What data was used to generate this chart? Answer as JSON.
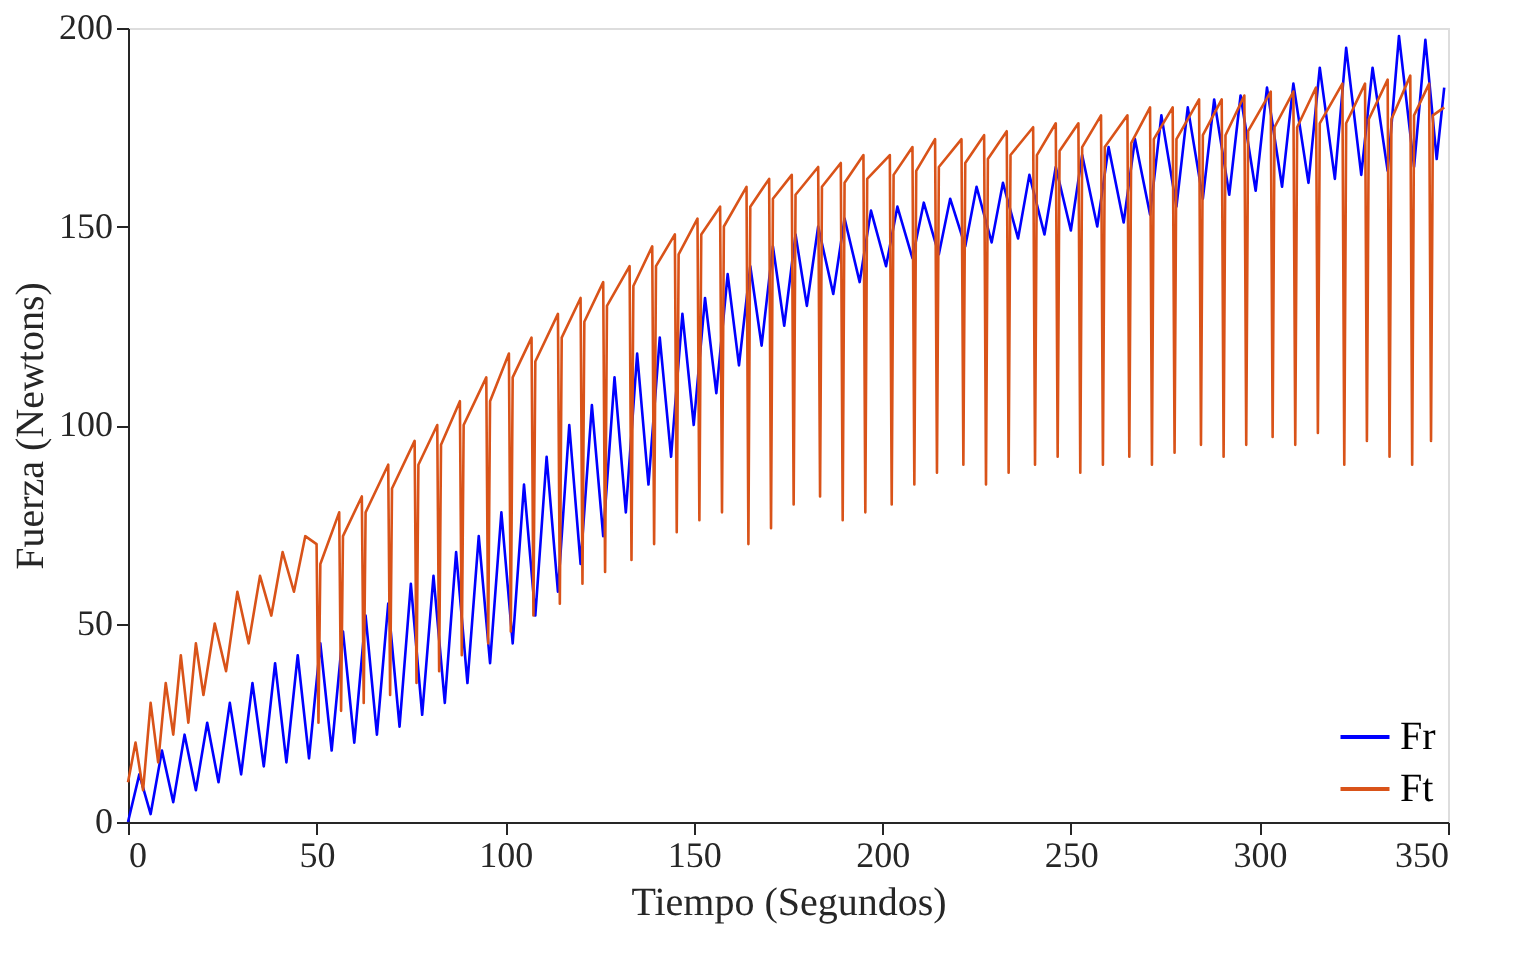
{
  "chart_data": {
    "type": "line",
    "xlabel": "Tiempo (Segundos)",
    "ylabel": "Fuerza (Newtons)",
    "xlim": [
      0,
      350
    ],
    "xticks": [
      0,
      50,
      100,
      150,
      200,
      250,
      300,
      350
    ],
    "ylim": [
      0,
      200
    ],
    "yticks": [
      0,
      50,
      100,
      150,
      200
    ],
    "grid": false,
    "legend": "bottom right",
    "marker": "none",
    "line_style": "solid",
    "series": [
      {
        "name": "Fr",
        "color": "#0000ff",
        "x": [
          0,
          3,
          6,
          9,
          12,
          15,
          18,
          21,
          24,
          27,
          30,
          33,
          36,
          39,
          42,
          45,
          48,
          51,
          54,
          57,
          60,
          63,
          66,
          69,
          72,
          75,
          78,
          81,
          84,
          87,
          90,
          93,
          96,
          99,
          102,
          105,
          108,
          111,
          114,
          117,
          120,
          123,
          126,
          129,
          132,
          135,
          138,
          141,
          144,
          147,
          150,
          153,
          156,
          159,
          162,
          165,
          168,
          171,
          174,
          177,
          180,
          183,
          187,
          190,
          194,
          197,
          201,
          204,
          208,
          211,
          215,
          218,
          222,
          225,
          229,
          232,
          236,
          239,
          243,
          246,
          250,
          253,
          257,
          260,
          264,
          267,
          271,
          274,
          278,
          281,
          285,
          288,
          292,
          295,
          299,
          302,
          306,
          309,
          313,
          316,
          320,
          323,
          327,
          330,
          334,
          337,
          341,
          344,
          347,
          349
        ],
        "values": [
          0,
          12,
          2,
          18,
          5,
          22,
          8,
          25,
          10,
          30,
          12,
          35,
          14,
          40,
          15,
          42,
          16,
          45,
          18,
          48,
          20,
          52,
          22,
          55,
          24,
          60,
          27,
          62,
          30,
          68,
          35,
          72,
          40,
          78,
          45,
          85,
          52,
          92,
          58,
          100,
          65,
          105,
          72,
          112,
          78,
          118,
          85,
          122,
          92,
          128,
          100,
          132,
          108,
          138,
          115,
          140,
          120,
          145,
          125,
          148,
          130,
          150,
          133,
          152,
          136,
          154,
          140,
          155,
          142,
          156,
          143,
          157,
          145,
          160,
          146,
          161,
          147,
          163,
          148,
          165,
          149,
          168,
          150,
          170,
          151,
          172,
          153,
          178,
          155,
          180,
          157,
          182,
          158,
          183,
          159,
          185,
          160,
          186,
          161,
          190,
          162,
          195,
          163,
          190,
          164,
          198,
          165,
          197,
          167,
          185
        ]
      },
      {
        "name": "Ft",
        "color": "#d95319",
        "x": [
          0,
          2,
          4,
          6,
          8,
          10,
          12,
          14,
          16,
          18,
          20,
          23,
          26,
          29,
          32,
          35,
          38,
          41,
          44,
          47,
          50,
          50.5,
          51,
          56,
          56.5,
          57,
          62,
          62.5,
          63,
          69,
          69.5,
          70,
          76,
          76.5,
          77,
          82,
          82.5,
          83,
          88,
          88.5,
          89,
          95,
          95.5,
          96,
          101,
          101.5,
          102,
          107,
          107.5,
          108,
          114,
          114.5,
          115,
          120,
          120.5,
          121,
          126,
          126.5,
          127,
          133,
          133.5,
          134,
          139,
          139.5,
          140,
          145,
          145.5,
          146,
          151,
          151.5,
          152,
          157,
          157.5,
          158,
          164,
          164.5,
          165,
          170,
          170.5,
          171,
          176,
          176.5,
          177,
          183,
          183.5,
          184,
          189,
          189.5,
          190,
          195,
          195.5,
          196,
          202,
          202.5,
          203,
          208,
          208.5,
          209,
          214,
          214.5,
          215,
          221,
          221.5,
          222,
          227,
          227.5,
          228,
          233,
          233.5,
          234,
          240,
          240.5,
          241,
          246,
          246.5,
          247,
          252,
          252.5,
          253,
          258,
          258.5,
          259,
          265,
          265.5,
          266,
          271,
          271.5,
          272,
          277,
          277.5,
          278,
          284,
          284.5,
          285,
          290,
          290.5,
          291,
          296,
          296.5,
          297,
          303,
          303.5,
          304,
          309,
          309.5,
          310,
          315,
          315.5,
          316,
          322,
          322.5,
          323,
          328,
          328.5,
          329,
          334,
          334.5,
          335,
          340,
          340.5,
          341,
          345,
          345.5,
          346,
          349
        ],
        "values": [
          10,
          20,
          8,
          30,
          15,
          35,
          22,
          42,
          25,
          45,
          32,
          50,
          38,
          58,
          45,
          62,
          52,
          68,
          58,
          72,
          70,
          25,
          65,
          78,
          28,
          72,
          82,
          30,
          78,
          90,
          32,
          84,
          96,
          35,
          90,
          100,
          38,
          95,
          106,
          42,
          100,
          112,
          45,
          106,
          118,
          48,
          112,
          122,
          52,
          116,
          128,
          55,
          122,
          132,
          60,
          126,
          136,
          63,
          130,
          140,
          66,
          135,
          145,
          70,
          140,
          148,
          73,
          143,
          152,
          76,
          148,
          155,
          78,
          150,
          160,
          70,
          155,
          162,
          74,
          157,
          163,
          80,
          158,
          165,
          82,
          160,
          166,
          76,
          161,
          168,
          78,
          162,
          168,
          80,
          163,
          170,
          85,
          164,
          172,
          88,
          165,
          172,
          90,
          166,
          173,
          85,
          167,
          174,
          88,
          168,
          175,
          90,
          168,
          176,
          92,
          169,
          176,
          88,
          170,
          178,
          90,
          170,
          178,
          92,
          171,
          180,
          90,
          172,
          180,
          93,
          172,
          182,
          95,
          173,
          182,
          92,
          173,
          183,
          95,
          174,
          184,
          97,
          175,
          184,
          95,
          175,
          185,
          98,
          176,
          186,
          90,
          176,
          186,
          96,
          177,
          187,
          92,
          177,
          188,
          90,
          178,
          186,
          96,
          178,
          180
        ]
      }
    ]
  }
}
